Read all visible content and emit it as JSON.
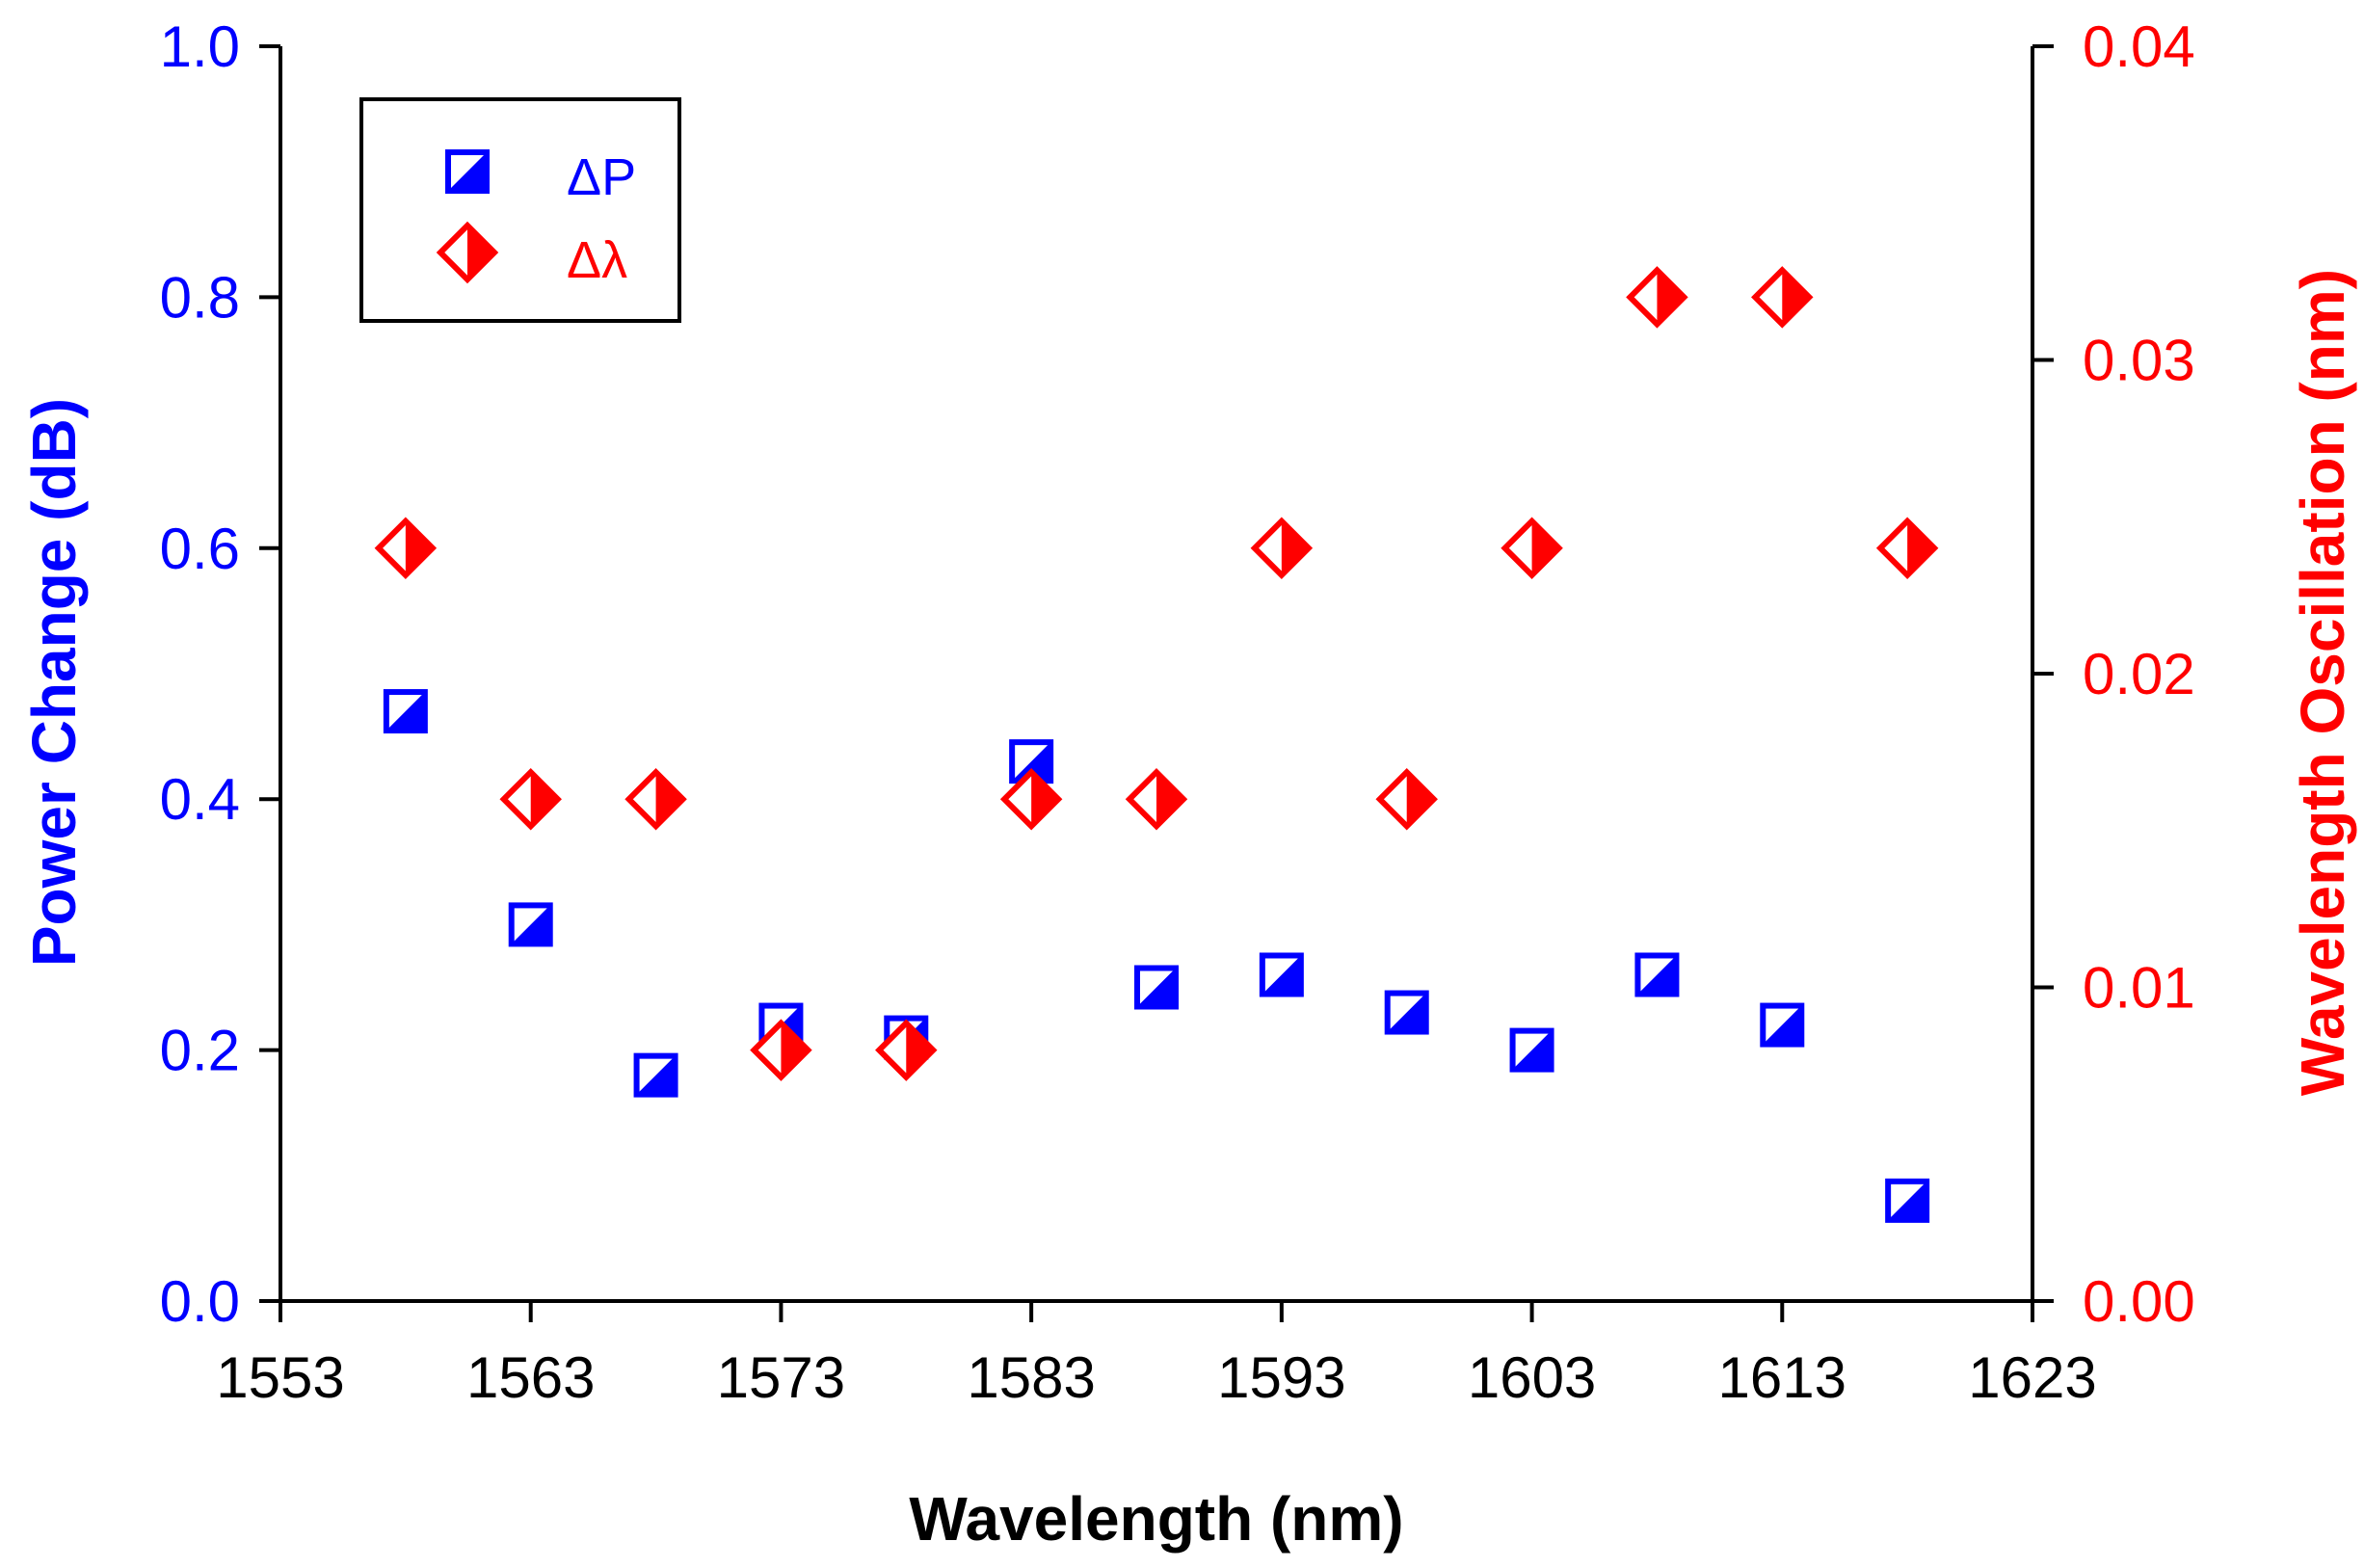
{
  "chart_data": {
    "type": "scatter",
    "title": "",
    "xlabel": "Wavelength (nm)",
    "ylabel_left": "Power Change (dB)",
    "ylabel_right": "Wavelength Oscillation (nm)",
    "xlim": [
      1553,
      1623
    ],
    "ylim_left": [
      0.0,
      1.0
    ],
    "ylim_right": [
      0.0,
      0.04
    ],
    "x_ticks": [
      "1553",
      "1563",
      "1573",
      "1583",
      "1593",
      "1603",
      "1613",
      "1623"
    ],
    "y_left_ticks": [
      "0.0",
      "0.2",
      "0.4",
      "0.6",
      "0.8",
      "1.0"
    ],
    "y_right_ticks": [
      "0.00",
      "0.01",
      "0.02",
      "0.03",
      "0.04"
    ],
    "grid": false,
    "legend_position": "top-left",
    "series": [
      {
        "name": "ΔP",
        "axis": "left",
        "marker": "half-filled-square",
        "color": "#0000ff",
        "x": [
          1558,
          1563,
          1568,
          1573,
          1578,
          1583,
          1588,
          1593,
          1598,
          1603,
          1608,
          1613,
          1618
        ],
        "y": [
          0.47,
          0.3,
          0.18,
          0.22,
          0.21,
          0.43,
          0.25,
          0.26,
          0.23,
          0.2,
          0.26,
          0.22,
          0.08
        ]
      },
      {
        "name": "Δλ",
        "axis": "right",
        "marker": "half-filled-diamond",
        "color": "#ff0000",
        "x": [
          1558,
          1563,
          1568,
          1573,
          1578,
          1583,
          1588,
          1593,
          1598,
          1603,
          1608,
          1613,
          1618
        ],
        "y": [
          0.024,
          0.016,
          0.016,
          0.008,
          0.008,
          0.016,
          0.016,
          0.024,
          0.016,
          0.024,
          0.032,
          0.032,
          0.024
        ]
      }
    ]
  },
  "colors": {
    "left_axis": "#0000ff",
    "right_axis": "#ff0000",
    "frame": "#000000"
  }
}
